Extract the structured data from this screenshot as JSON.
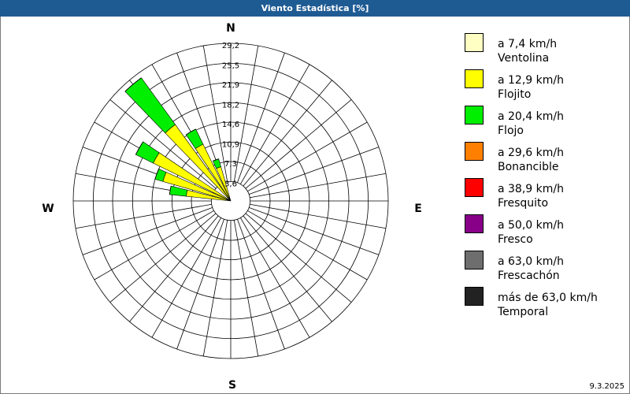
{
  "chart_data": {
    "type": "windrose",
    "title": "Viento Estadística [%]",
    "date": "9.3.2025",
    "compass": {
      "N": "N",
      "E": "E",
      "S": "S",
      "W": "W"
    },
    "x": [
      280,
      290,
      300,
      320,
      330,
      340
    ],
    "sector_step": 10,
    "rlim": [
      0,
      29.2
    ],
    "rticks": [
      {
        "value": 3.6,
        "label": "3,6"
      },
      {
        "value": 7.3,
        "label": "7,3"
      },
      {
        "value": 10.9,
        "label": "10,9"
      },
      {
        "value": 14.6,
        "label": "14,6"
      },
      {
        "value": 18.2,
        "label": "18,2"
      },
      {
        "value": 21.9,
        "label": "21,9"
      },
      {
        "value": 25.5,
        "label": "25,5"
      },
      {
        "value": 29.2,
        "label": "29,2"
      }
    ],
    "series": [
      {
        "name": "a 7,4 km/h",
        "description": "Ventolina",
        "color": "#ffffc4",
        "values": [
          0,
          0,
          0,
          0,
          0,
          0
        ]
      },
      {
        "name": "a 12,9 km/h",
        "description": "Flojito",
        "color": "#ffff00",
        "values": [
          8.3,
          13.1,
          16,
          17.5,
          11.7,
          6.6
        ]
      },
      {
        "name": "a 20,4 km/h",
        "description": "Flojo",
        "color": "#00ee00",
        "values": [
          3.1,
          1.5,
          3.6,
          10.7,
          3.1,
          1.5
        ]
      },
      {
        "name": "a 29,6 km/h",
        "description": "Bonancible",
        "color": "#ff8000",
        "values": [
          0,
          0,
          0,
          0,
          0,
          0
        ]
      },
      {
        "name": "a 38,9 km/h",
        "description": "Fresquito",
        "color": "#ff0000",
        "values": [
          0,
          0,
          0,
          0,
          0,
          0
        ]
      },
      {
        "name": "a 50,0 km/h",
        "description": "Fresco",
        "color": "#880088",
        "values": [
          0,
          0,
          0,
          0,
          0,
          0
        ]
      },
      {
        "name": "a 63,0 km/h",
        "description": "Frescachón",
        "color": "#6e6e6e",
        "values": [
          0,
          0,
          0,
          0,
          0,
          0
        ]
      },
      {
        "name": "más de 63,0 km/h",
        "description": "Temporal",
        "color": "#222222",
        "values": [
          0,
          0,
          0,
          0,
          0,
          0
        ]
      }
    ]
  }
}
